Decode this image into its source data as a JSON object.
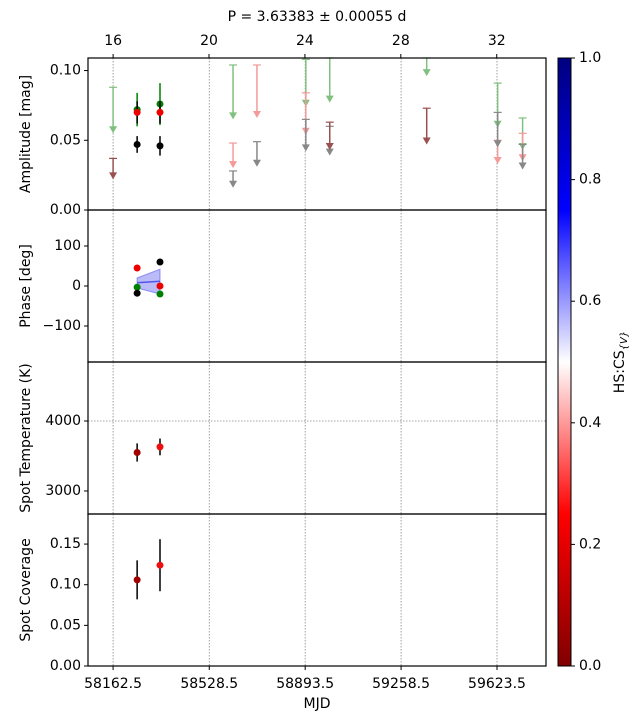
{
  "chart_data": [
    {
      "type": "upper-limit-scatter",
      "title": "P = 3.63383 ± 0.00055 d",
      "ylabel": "Amplitude [mag]",
      "x2lim": [
        14.953,
        34.055
      ],
      "x2ticks": [
        16,
        20,
        24,
        28,
        32
      ],
      "ylim": [
        0,
        0.109
      ],
      "yticks": [
        {
          "value": 0,
          "label": "0.00"
        },
        {
          "value": 0.05,
          "label": "0.05"
        },
        {
          "value": 0.1,
          "label": "0.10"
        }
      ],
      "series": [
        {
          "color": "#008000",
          "x": [
            58254,
            58341
          ],
          "values": [
            0.072,
            0.076
          ],
          "errors": [
            0.012,
            0.015
          ]
        },
        {
          "color": "#ee0000",
          "x": [
            58254,
            58341
          ],
          "values": [
            0.07,
            0.07
          ],
          "errors": [
            0.008,
            0.008
          ]
        },
        {
          "color": "#000000",
          "x": [
            58254,
            58341
          ],
          "values": [
            0.047,
            0.046
          ],
          "errors": [
            0.006,
            0.007
          ]
        }
      ],
      "upper_limits": [
        {
          "color": "#80c080",
          "x": [
            58162.5,
            58619,
            58896,
            58987,
            59356,
            59626,
            59721
          ],
          "values": [
            0.088,
            0.104,
            0.108,
            0.109,
            0.109,
            0.091,
            0.066
          ],
          "arrow_to": [
            0.055,
            0.065,
            0.074,
            0.077,
            0.096,
            0.059,
            0.043
          ]
        },
        {
          "color": "#f49a9a",
          "x": [
            58619,
            58710,
            58896,
            59626,
            59721
          ],
          "values": [
            0.048,
            0.104,
            0.084,
            0.05,
            0.055
          ],
          "arrow_to": [
            0.03,
            0.066,
            0.054,
            0.033,
            0.035
          ]
        },
        {
          "color": "#888888",
          "x": [
            58619,
            58710,
            58896,
            58987,
            59626,
            59721
          ],
          "values": [
            0.028,
            0.049,
            0.065,
            0.06,
            0.07,
            0.047
          ],
          "arrow_to": [
            0.016,
            0.031,
            0.042,
            0.039,
            0.045,
            0.029
          ]
        },
        {
          "color": "#9a5050",
          "x": [
            58162.5,
            58987,
            59356
          ],
          "values": [
            0.037,
            0.063,
            0.073
          ],
          "arrow_to": [
            0.022,
            0.043,
            0.047
          ]
        }
      ]
    },
    {
      "type": "band-scatter",
      "ylabel": "Phase [deg]",
      "ylim": [
        -190,
        190
      ],
      "yticks": [
        {
          "value": -100,
          "label": "−100"
        },
        0,
        100
      ],
      "band": {
        "color": "#5555ee",
        "x": [
          58254,
          58341
        ],
        "lower": [
          -5,
          -20
        ],
        "upper": [
          20,
          42
        ],
        "center": [
          8,
          12
        ]
      },
      "series": [
        {
          "color": "#ee0000",
          "x": [
            58254,
            58341
          ],
          "values": [
            45,
            0
          ]
        },
        {
          "color": "#008000",
          "x": [
            58254,
            58341
          ],
          "values": [
            -3,
            -20
          ]
        },
        {
          "color": "#000000",
          "x": [
            58254,
            58341
          ],
          "values": [
            -18,
            60
          ]
        }
      ]
    },
    {
      "type": "scatter",
      "ylabel": "Spot Temperature (K)",
      "ylim": [
        2671,
        4843
      ],
      "yticks": [
        3000,
        4000
      ],
      "hline": 4000,
      "series": [
        {
          "color": "#a00000",
          "x": [
            58254
          ],
          "values": [
            3550
          ],
          "errors": [
            130
          ]
        },
        {
          "color": "#ee1010",
          "x": [
            58341
          ],
          "values": [
            3630
          ],
          "errors": [
            120
          ]
        }
      ]
    },
    {
      "type": "scatter",
      "ylabel": "Spot Coverage",
      "xlabel": "MJD",
      "xlim": [
        58067,
        59810
      ],
      "xticks": [
        58162.5,
        58528.5,
        58893.5,
        59258.5,
        59623.5
      ],
      "ylim": [
        0,
        0.187
      ],
      "yticks": [
        {
          "value": 0,
          "label": "0.00"
        },
        {
          "value": 0.05,
          "label": "0.05"
        },
        {
          "value": 0.1,
          "label": "0.10"
        },
        {
          "value": 0.15,
          "label": "0.15"
        }
      ],
      "series": [
        {
          "color": "#a00000",
          "x": [
            58254
          ],
          "values": [
            0.106
          ],
          "errors": [
            0.024
          ]
        },
        {
          "color": "#ee1010",
          "x": [
            58341
          ],
          "values": [
            0.124
          ],
          "errors": [
            0.032
          ]
        }
      ]
    }
  ],
  "colorbar": {
    "label": "HS:CS",
    "label_sub": "{V}",
    "lim": [
      0,
      1
    ],
    "ticks": [
      {
        "value": 0,
        "label": "0.0"
      },
      {
        "value": 0.2,
        "label": "0.2"
      },
      {
        "value": 0.4,
        "label": "0.4"
      },
      {
        "value": 0.6,
        "label": "0.6"
      },
      {
        "value": 0.8,
        "label": "0.8"
      },
      {
        "value": 1,
        "label": "1.0"
      }
    ]
  }
}
